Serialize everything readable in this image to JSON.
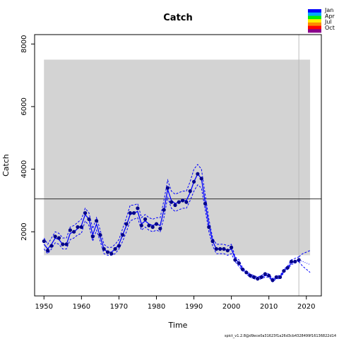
{
  "chart_data": {
    "type": "line",
    "title": "Catch",
    "xlabel": "Time",
    "ylabel": "Catch",
    "xlim": [
      1947.5,
      2024
    ],
    "ylim": [
      -50,
      8300
    ],
    "xticks": [
      1950,
      1960,
      1970,
      1980,
      1990,
      2000,
      2010,
      2020
    ],
    "yticks": [
      2000,
      4000,
      6000,
      8000
    ],
    "grid": false,
    "shaded_region": {
      "x": [
        1950,
        2021
      ],
      "y": [
        1250,
        7500
      ],
      "color": "#d3d3d3"
    },
    "reference_hline": 3050,
    "reference_vline": 2018,
    "series": [
      {
        "role": "observed",
        "x": [
          1950,
          1951,
          1952,
          1953,
          1954,
          1955,
          1956,
          1957,
          1958,
          1959,
          1960,
          1961,
          1962,
          1963,
          1964,
          1965,
          1966,
          1967,
          1968,
          1969,
          1970,
          1971,
          1972,
          1973,
          1974,
          1975,
          1976,
          1977,
          1978,
          1979,
          1980,
          1981,
          1982,
          1983,
          1984,
          1985,
          1986,
          1987,
          1988,
          1989,
          1990,
          1991,
          1992,
          1993,
          1994,
          1995,
          1996,
          1997,
          1998,
          1999,
          2000,
          2001,
          2002,
          2003,
          2004,
          2005,
          2006,
          2007,
          2008,
          2009,
          2010,
          2011,
          2012,
          2013,
          2014,
          2015,
          2016,
          2017,
          2018
        ],
        "values": [
          1700,
          1400,
          1550,
          1850,
          1800,
          1600,
          1600,
          2050,
          2000,
          2150,
          2150,
          2600,
          2400,
          1850,
          2350,
          1900,
          1450,
          1350,
          1300,
          1450,
          1550,
          1900,
          2250,
          2600,
          2600,
          2750,
          2200,
          2400,
          2200,
          2150,
          2250,
          2100,
          2700,
          3400,
          2950,
          2850,
          2950,
          3000,
          2950,
          3300,
          3600,
          3850,
          3700,
          2900,
          2150,
          1700,
          1450,
          1450,
          1450,
          1400,
          1500,
          1100,
          1000,
          800,
          700,
          600,
          550,
          500,
          550,
          650,
          600,
          450,
          550,
          550,
          750,
          850,
          1050,
          1050,
          1100
        ],
        "color": "#00008b"
      },
      {
        "role": "model",
        "x": [
          1950,
          1951,
          1952,
          1953,
          1954,
          1955,
          1956,
          1957,
          1958,
          1959,
          1960,
          1961,
          1962,
          1963,
          1964,
          1965,
          1966,
          1967,
          1968,
          1969,
          1970,
          1971,
          1972,
          1973,
          1974,
          1975,
          1976,
          1977,
          1978,
          1979,
          1980,
          1981,
          1982,
          1983,
          1984,
          1985,
          1986,
          1987,
          1988,
          1989,
          1990,
          1991,
          1992,
          1993,
          1994,
          1995,
          1996,
          1997,
          1998,
          1999,
          2000,
          2001,
          2002,
          2003,
          2004,
          2005,
          2006,
          2007,
          2008,
          2009,
          2010,
          2011,
          2012,
          2013,
          2014,
          2015,
          2016,
          2017,
          2018
        ],
        "values": [
          1600,
          1450,
          1600,
          1800,
          1750,
          1600,
          1600,
          1950,
          2000,
          2100,
          2200,
          2550,
          2400,
          1900,
          2250,
          1850,
          1450,
          1350,
          1350,
          1450,
          1600,
          1900,
          2200,
          2550,
          2600,
          2650,
          2250,
          2350,
          2250,
          2200,
          2250,
          2200,
          2700,
          3350,
          3000,
          2900,
          2950,
          3000,
          3000,
          3250,
          3600,
          3850,
          3700,
          2950,
          2200,
          1700,
          1450,
          1450,
          1450,
          1400,
          1450,
          1150,
          1000,
          800,
          700,
          600,
          550,
          500,
          550,
          600,
          600,
          450,
          550,
          550,
          750,
          850,
          1000,
          1050,
          1100
        ],
        "color": "#0000ff"
      },
      {
        "role": "upper",
        "x": [
          1950,
          1951,
          1952,
          1953,
          1954,
          1955,
          1956,
          1957,
          1958,
          1959,
          1960,
          1961,
          1962,
          1963,
          1964,
          1965,
          1966,
          1967,
          1968,
          1969,
          1970,
          1971,
          1972,
          1973,
          1974,
          1975,
          1976,
          1977,
          1978,
          1979,
          1980,
          1981,
          1982,
          1983,
          1984,
          1985,
          1986,
          1987,
          1988,
          1989,
          1990,
          1991,
          1992,
          1993,
          1994,
          1995,
          1996,
          1997,
          1998,
          1999,
          2000,
          2001,
          2002,
          2003,
          2004,
          2005,
          2006,
          2007,
          2008,
          2009,
          2010,
          2011,
          2012,
          2013,
          2014,
          2015,
          2016,
          2017,
          2018
        ],
        "values": [
          1800,
          1600,
          1800,
          2000,
          1950,
          1800,
          1800,
          2150,
          2200,
          2300,
          2400,
          2750,
          2600,
          2100,
          2450,
          2050,
          1600,
          1500,
          1500,
          1600,
          1750,
          2100,
          2450,
          2850,
          2850,
          2900,
          2450,
          2550,
          2450,
          2400,
          2450,
          2450,
          3000,
          3650,
          3300,
          3200,
          3250,
          3300,
          3300,
          3600,
          4000,
          4150,
          4000,
          3200,
          2400,
          1800,
          1600,
          1600,
          1600,
          1550,
          1600,
          1200,
          1100,
          850,
          750,
          650,
          600,
          550,
          600,
          700,
          650,
          500,
          600,
          600,
          800,
          900,
          1100,
          1150,
          1200
        ],
        "color": "#0000ff"
      },
      {
        "role": "lower",
        "x": [
          1950,
          1951,
          1952,
          1953,
          1954,
          1955,
          1956,
          1957,
          1958,
          1959,
          1960,
          1961,
          1962,
          1963,
          1964,
          1965,
          1966,
          1967,
          1968,
          1969,
          1970,
          1971,
          1972,
          1973,
          1974,
          1975,
          1976,
          1977,
          1978,
          1979,
          1980,
          1981,
          1982,
          1983,
          1984,
          1985,
          1986,
          1987,
          1988,
          1989,
          1990,
          1991,
          1992,
          1993,
          1994,
          1995,
          1996,
          1997,
          1998,
          1999,
          2000,
          2001,
          2002,
          2003,
          2004,
          2005,
          2006,
          2007,
          2008,
          2009,
          2010,
          2011,
          2012,
          2013,
          2014,
          2015,
          2016,
          2017,
          2018
        ],
        "values": [
          1450,
          1300,
          1450,
          1650,
          1600,
          1450,
          1450,
          1750,
          1800,
          1900,
          1950,
          2350,
          2200,
          1700,
          2050,
          1700,
          1300,
          1250,
          1250,
          1300,
          1450,
          1700,
          2000,
          2350,
          2400,
          2450,
          2050,
          2150,
          2050,
          2000,
          2050,
          2000,
          2450,
          3100,
          2750,
          2650,
          2700,
          2750,
          2750,
          3000,
          3300,
          3500,
          3400,
          2700,
          2000,
          1550,
          1300,
          1300,
          1300,
          1250,
          1300,
          1050,
          900,
          750,
          650,
          550,
          500,
          450,
          500,
          550,
          550,
          400,
          500,
          500,
          700,
          800,
          950,
          1000,
          1050
        ]
      }
    ],
    "forecast": {
      "x": [
        2018,
        2019,
        2020,
        2021
      ],
      "mid": [
        1100,
        1050,
        1000,
        950
      ],
      "upper": [
        1200,
        1300,
        1350,
        1400
      ],
      "lower": [
        1050,
        900,
        800,
        700
      ],
      "color": "#0000ff"
    },
    "legend": {
      "placement": "top-right",
      "entries": [
        "Jan",
        "Apr",
        "Jul",
        "Oct"
      ],
      "colors": [
        "#0000ff",
        "#00aaff",
        "#00ee00",
        "#ffee00",
        "#ff8800",
        "#ff0000",
        "#8b008b"
      ]
    },
    "footer": "spict_v1.2.8@d9ece0a31623f1a26d3cb4328499f16136822d14"
  }
}
